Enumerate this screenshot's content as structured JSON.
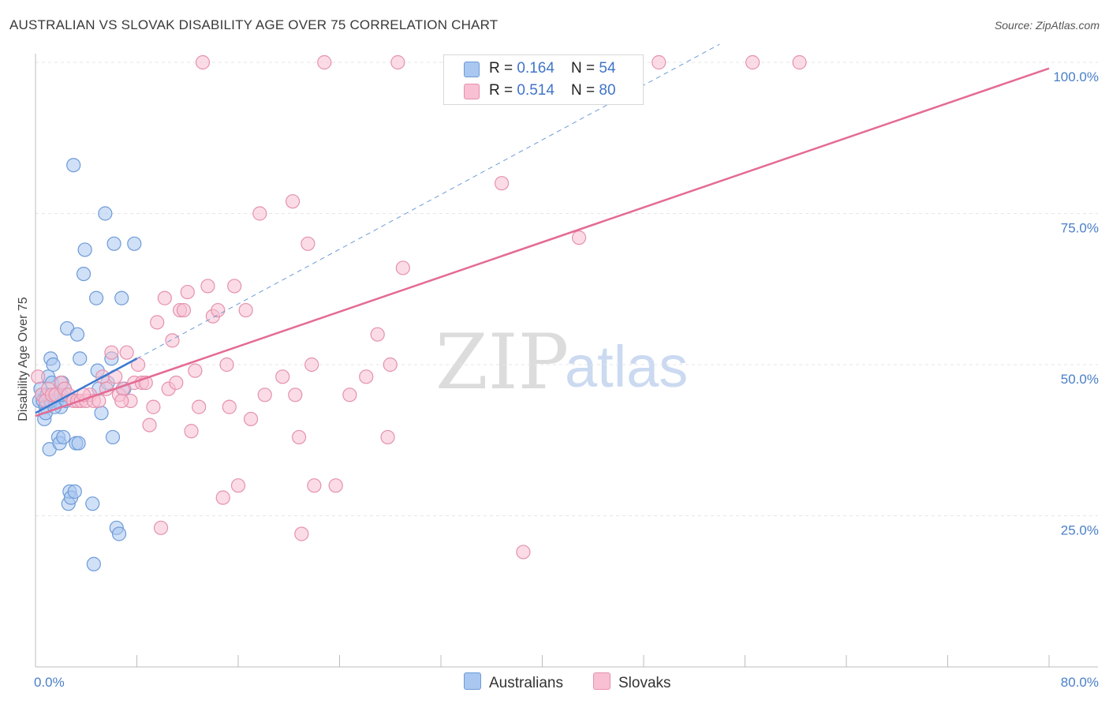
{
  "header": {
    "title": "AUSTRALIAN VS SLOVAK DISABILITY AGE OVER 75 CORRELATION CHART",
    "source": "Source: ZipAtlas.com"
  },
  "watermark": {
    "part1": "ZIP",
    "part2": "atlas"
  },
  "legend": {
    "rows": [
      {
        "r_label": "R = ",
        "r_value": "0.164",
        "n_label": "N = ",
        "n_value": "54",
        "color": "#a9c7f0",
        "stroke": "#6d9bd8"
      },
      {
        "r_label": "R = ",
        "r_value": "0.514",
        "n_label": "N = ",
        "n_value": "80",
        "color": "#f8c0d2",
        "stroke": "#e591ad"
      }
    ],
    "bottom": [
      {
        "label": "Australians",
        "color": "#a9c7f0",
        "stroke": "#6d9bd8"
      },
      {
        "label": "Slovaks",
        "color": "#f8c0d2",
        "stroke": "#e591ad"
      }
    ]
  },
  "chart_data": {
    "type": "scatter",
    "title": "AUSTRALIAN VS SLOVAK DISABILITY AGE OVER 75 CORRELATION CHART",
    "xlabel": "",
    "ylabel": "Disability Age Over 75",
    "xlim": [
      0,
      80
    ],
    "ylim": [
      0,
      100
    ],
    "x_tick_labels": [
      "0.0%",
      "80.0%"
    ],
    "y_ticks": [
      {
        "value": 100,
        "label": "100.0%"
      },
      {
        "value": 75,
        "label": "75.0%"
      },
      {
        "value": 50,
        "label": "50.0%"
      },
      {
        "value": 25,
        "label": "25.0%"
      }
    ],
    "grid": true,
    "series": [
      {
        "name": "Australians",
        "color": "#6d9bd8",
        "fill": "#a9c7f0",
        "trend": {
          "x0": 0,
          "y0": 42,
          "x1": 8,
          "y1": 51,
          "dashed_to_x": 54,
          "dashed_to_y": 103
        },
        "points": [
          [
            0.3,
            44
          ],
          [
            0.4,
            46
          ],
          [
            0.5,
            45
          ],
          [
            0.6,
            44
          ],
          [
            0.7,
            41
          ],
          [
            0.8,
            43
          ],
          [
            0.9,
            45
          ],
          [
            1.0,
            48
          ],
          [
            1.1,
            36
          ],
          [
            1.2,
            51
          ],
          [
            1.3,
            47
          ],
          [
            1.4,
            50
          ],
          [
            1.5,
            45
          ],
          [
            1.6,
            44
          ],
          [
            1.7,
            44
          ],
          [
            1.8,
            38
          ],
          [
            1.9,
            37
          ],
          [
            2.0,
            43
          ],
          [
            2.1,
            47
          ],
          [
            2.2,
            38
          ],
          [
            2.3,
            46
          ],
          [
            2.4,
            44
          ],
          [
            2.5,
            56
          ],
          [
            2.6,
            27
          ],
          [
            2.7,
            29
          ],
          [
            2.8,
            28
          ],
          [
            3.0,
            83
          ],
          [
            3.1,
            29
          ],
          [
            3.2,
            37
          ],
          [
            3.3,
            55
          ],
          [
            3.4,
            37
          ],
          [
            3.5,
            51
          ],
          [
            3.8,
            65
          ],
          [
            3.9,
            69
          ],
          [
            4.5,
            27
          ],
          [
            4.6,
            17
          ],
          [
            4.8,
            61
          ],
          [
            4.9,
            49
          ],
          [
            5.0,
            46
          ],
          [
            5.2,
            42
          ],
          [
            5.5,
            75
          ],
          [
            5.7,
            47
          ],
          [
            6.0,
            51
          ],
          [
            6.1,
            38
          ],
          [
            6.2,
            70
          ],
          [
            6.4,
            23
          ],
          [
            6.6,
            22
          ],
          [
            6.8,
            61
          ],
          [
            7.0,
            46
          ],
          [
            7.8,
            70
          ],
          [
            0.8,
            42
          ],
          [
            1.2,
            44
          ],
          [
            2.0,
            45
          ],
          [
            1.5,
            43
          ]
        ]
      },
      {
        "name": "Slovaks",
        "color": "#e591ad",
        "fill": "#f8c0d2",
        "trend": {
          "x0": 0,
          "y0": 41.5,
          "x1": 80,
          "y1": 99
        },
        "points": [
          [
            0.2,
            48
          ],
          [
            0.5,
            45
          ],
          [
            0.8,
            44
          ],
          [
            1.0,
            46
          ],
          [
            1.3,
            45
          ],
          [
            1.6,
            45
          ],
          [
            2.0,
            47
          ],
          [
            2.3,
            46
          ],
          [
            2.6,
            45
          ],
          [
            3.0,
            44
          ],
          [
            3.3,
            44
          ],
          [
            3.6,
            44
          ],
          [
            4.0,
            44
          ],
          [
            4.3,
            45
          ],
          [
            4.6,
            44
          ],
          [
            5.0,
            44
          ],
          [
            5.3,
            48
          ],
          [
            5.6,
            46
          ],
          [
            6.0,
            52
          ],
          [
            6.3,
            48
          ],
          [
            6.6,
            45
          ],
          [
            6.9,
            46
          ],
          [
            7.2,
            52
          ],
          [
            7.5,
            44
          ],
          [
            7.8,
            47
          ],
          [
            8.1,
            50
          ],
          [
            8.4,
            47
          ],
          [
            8.7,
            47
          ],
          [
            9.0,
            40
          ],
          [
            9.3,
            43
          ],
          [
            9.6,
            57
          ],
          [
            9.9,
            23
          ],
          [
            10.2,
            61
          ],
          [
            10.5,
            46
          ],
          [
            10.8,
            54
          ],
          [
            11.1,
            47
          ],
          [
            11.4,
            59
          ],
          [
            11.7,
            59
          ],
          [
            12.0,
            62
          ],
          [
            12.3,
            39
          ],
          [
            12.6,
            49
          ],
          [
            12.9,
            43
          ],
          [
            13.2,
            100
          ],
          [
            13.6,
            63
          ],
          [
            14.0,
            58
          ],
          [
            14.4,
            59
          ],
          [
            14.8,
            28
          ],
          [
            15.1,
            50
          ],
          [
            15.3,
            43
          ],
          [
            15.7,
            63
          ],
          [
            16.0,
            30
          ],
          [
            16.6,
            59
          ],
          [
            17.0,
            41
          ],
          [
            17.7,
            75
          ],
          [
            18.1,
            45
          ],
          [
            19.5,
            48
          ],
          [
            20.3,
            77
          ],
          [
            20.5,
            45
          ],
          [
            20.8,
            38
          ],
          [
            21.0,
            22
          ],
          [
            21.5,
            70
          ],
          [
            21.8,
            50
          ],
          [
            22.0,
            30
          ],
          [
            22.8,
            100
          ],
          [
            23.7,
            30
          ],
          [
            24.8,
            45
          ],
          [
            26.1,
            48
          ],
          [
            27.0,
            55
          ],
          [
            27.8,
            38
          ],
          [
            28.0,
            50
          ],
          [
            28.6,
            100
          ],
          [
            29.0,
            66
          ],
          [
            36.8,
            80
          ],
          [
            38.5,
            19
          ],
          [
            42.9,
            71
          ],
          [
            49.2,
            100
          ],
          [
            56.6,
            100
          ],
          [
            60.3,
            100
          ],
          [
            3.8,
            45
          ],
          [
            6.8,
            44
          ]
        ]
      }
    ]
  }
}
